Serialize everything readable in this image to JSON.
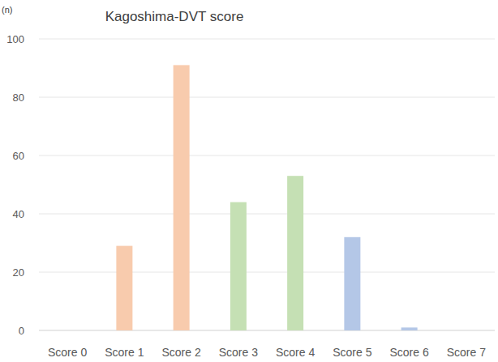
{
  "chart_data": {
    "type": "bar",
    "title": "Kagoshima-DVT score",
    "ylabel": "(n)",
    "categories": [
      "Score 0",
      "Score 1",
      "Score 2",
      "Score 3",
      "Score 4",
      "Score 5",
      "Score 6",
      "Score 7"
    ],
    "values": [
      0,
      29,
      91,
      44,
      53,
      32,
      1,
      0
    ],
    "colors": [
      "#f8cbad",
      "#f8cbad",
      "#f8cbad",
      "#c5e0b4",
      "#c5e0b4",
      "#b4c7e7",
      "#b4c7e7",
      "#b4c7e7"
    ],
    "ylim": [
      0,
      100
    ],
    "yticks": [
      0,
      20,
      40,
      60,
      80,
      100
    ],
    "grid": true
  }
}
